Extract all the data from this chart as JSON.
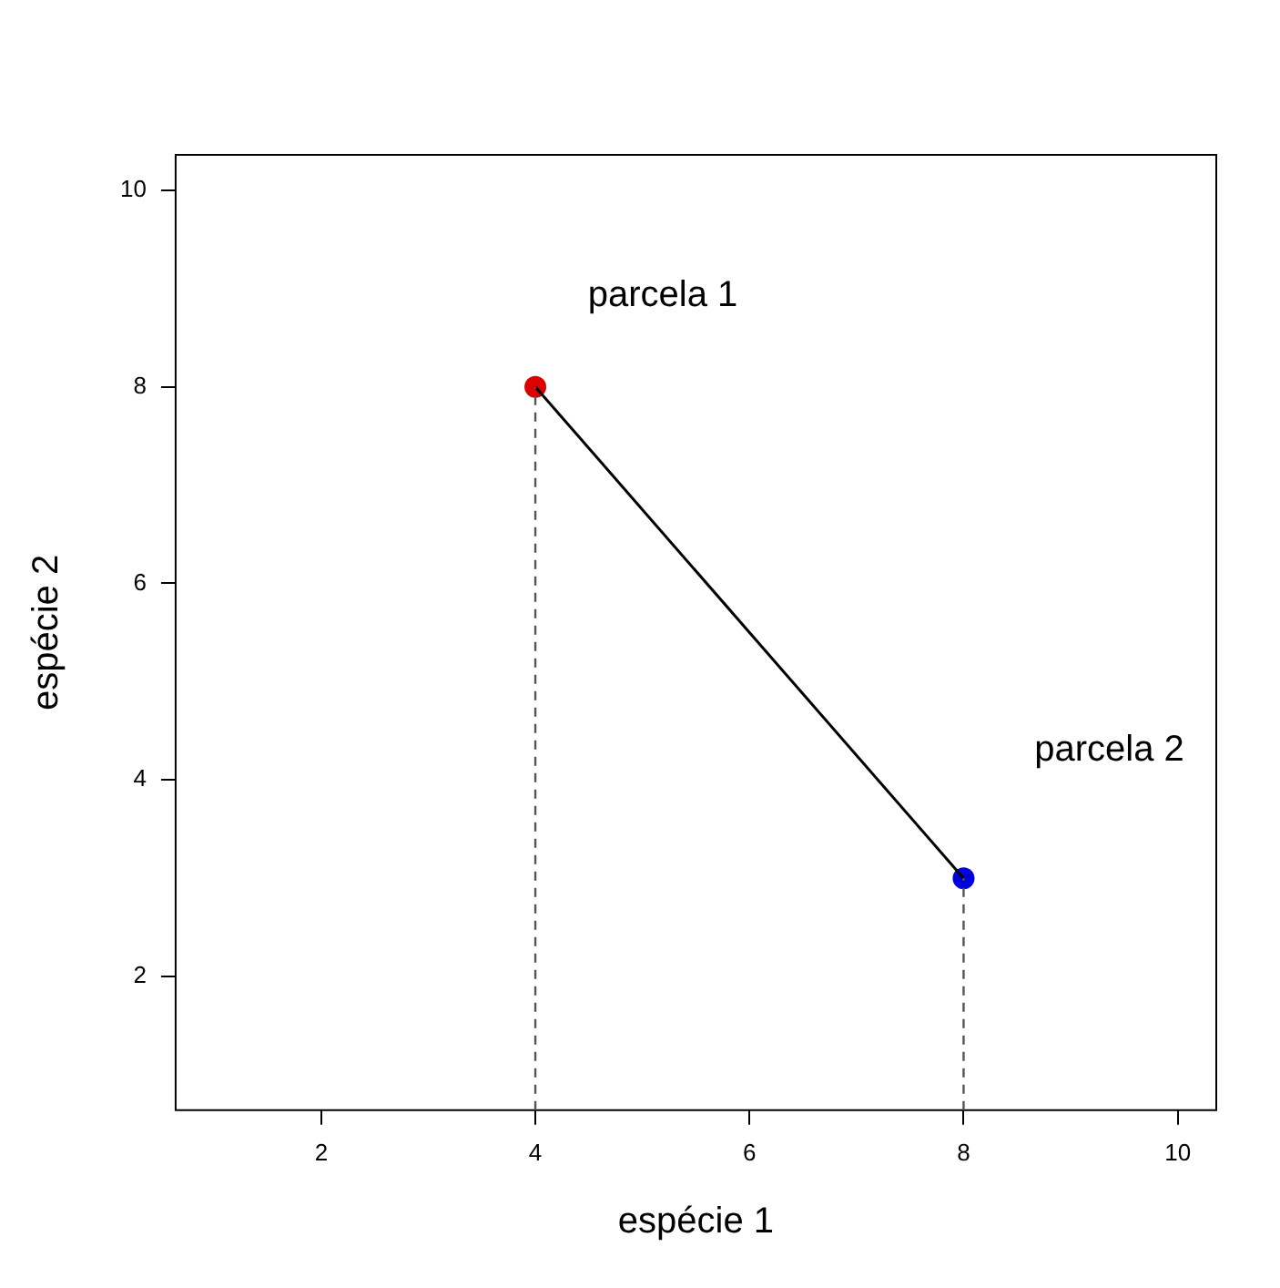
{
  "chart_data": {
    "type": "scatter",
    "xlabel": "espécie 1",
    "ylabel": "espécie 2",
    "xlim": [
      0.64,
      10.36
    ],
    "ylim": [
      0.64,
      10.36
    ],
    "xticks": [
      2,
      4,
      6,
      8,
      10
    ],
    "yticks": [
      2,
      4,
      6,
      8,
      10
    ],
    "legend": false,
    "x": [
      4,
      8
    ],
    "series": [
      {
        "type": "line",
        "color": "#000000",
        "line_style": "solid",
        "marker": "none",
        "values": [
          8,
          3
        ]
      },
      {
        "type": "scatter",
        "colors": [
          "#dd0000",
          "#0000dd"
        ],
        "marker": "circle",
        "values": [
          8,
          3
        ]
      }
    ],
    "ref_lines": [
      {
        "axis": "x",
        "value": 4,
        "color": "#555555",
        "line_style": "dashed"
      },
      {
        "axis": "x",
        "value": 8,
        "color": "#555555",
        "line_style": "dashed"
      }
    ],
    "annotations": [
      "parcela 1",
      "parcela 2"
    ]
  }
}
